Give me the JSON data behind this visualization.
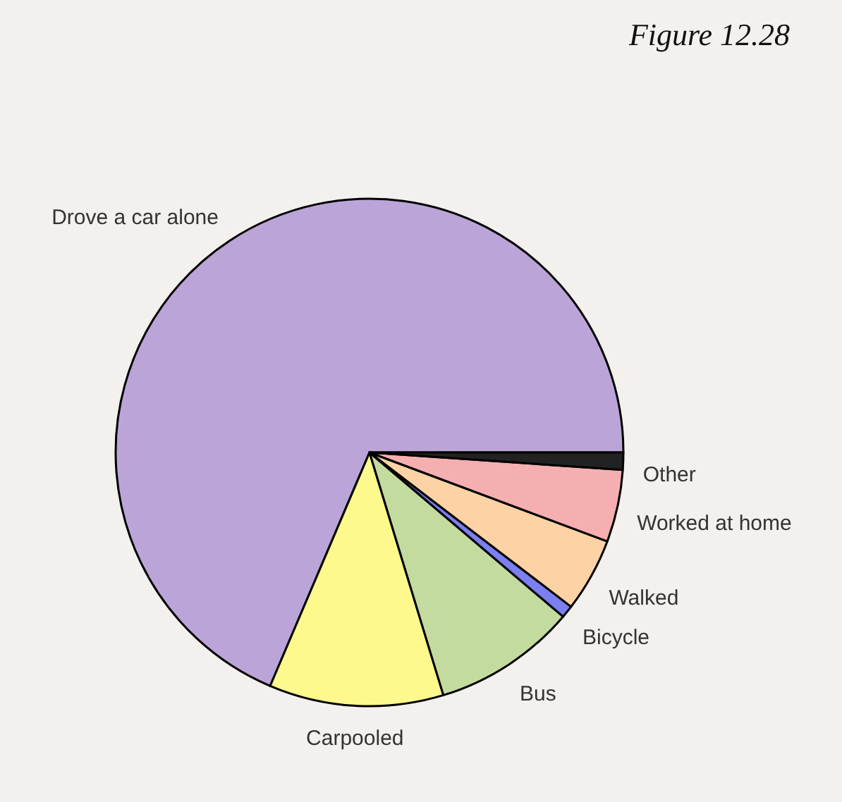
{
  "chart_data": {
    "type": "pie",
    "title": "Figure 12.28",
    "categories": [
      "Drove a car alone",
      "Carpooled",
      "Bus",
      "Bicycle",
      "Walked",
      "Worked at home",
      "Other"
    ],
    "values": [
      68.6,
      11.1,
      9.1,
      0.8,
      4.7,
      4.6,
      1.1
    ],
    "colors": [
      "#bba5d8",
      "#fdf98c",
      "#c4dba0",
      "#7b7ff0",
      "#fdd3a6",
      "#f5afb0",
      "#222222"
    ]
  }
}
